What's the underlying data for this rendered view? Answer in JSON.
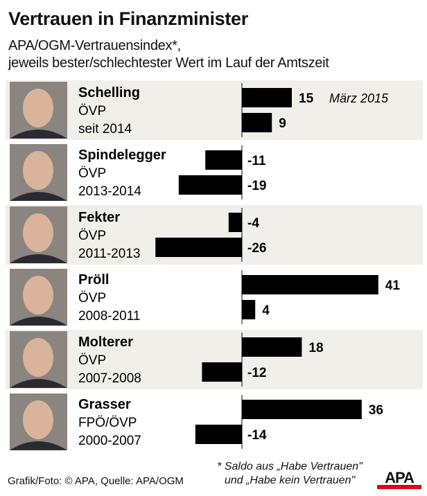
{
  "title": "Vertrauen in Finanzminister",
  "subtitle_lines": [
    "APA/OGM-Vertrauensindex*,",
    "jeweils bester/schlechtester Wert im Lauf der Amtszeit"
  ],
  "chart_data": {
    "type": "bar",
    "orientation": "horizontal",
    "title": "Vertrauen in Finanzminister",
    "categories": [
      {
        "name": "Schelling",
        "party": "ÖVP",
        "term": "seit 2014",
        "best": 15,
        "worst": 9,
        "annotation": "März 2015"
      },
      {
        "name": "Spindelegger",
        "party": "ÖVP",
        "term": "2013-2014",
        "best": -11,
        "worst": -19
      },
      {
        "name": "Fekter",
        "party": "ÖVP",
        "term": "2011-2013",
        "best": -4,
        "worst": -26
      },
      {
        "name": "Pröll",
        "party": "ÖVP",
        "term": "2008-2011",
        "best": 41,
        "worst": 4
      },
      {
        "name": "Molterer",
        "party": "ÖVP",
        "term": "2007-2008",
        "best": 18,
        "worst": -12
      },
      {
        "name": "Grasser",
        "party": "FPÖ/ÖVP",
        "term": "2000-2007",
        "best": 36,
        "worst": -14
      }
    ],
    "bar_color": "#000000",
    "band_color": "#f1efea"
  },
  "footnote_lines": [
    "* Saldo aus „Habe Vertrauen\"",
    "und „Habe kein Vertrauen\""
  ],
  "source": "Grafik/Foto: © APA, Quelle: APA/OGM",
  "logo": "APA",
  "logo_colors": {
    "text": "#000000",
    "bar": "#e3001b"
  }
}
